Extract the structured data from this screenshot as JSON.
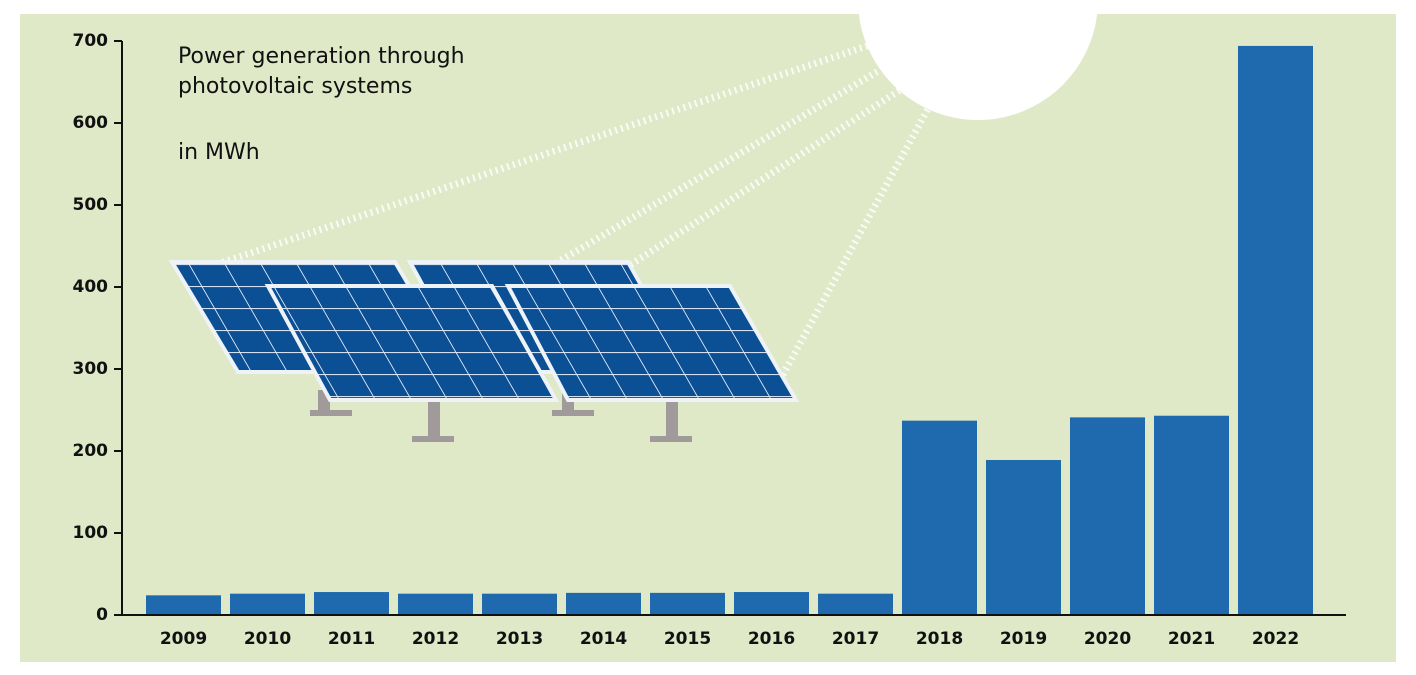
{
  "chart_data": {
    "type": "bar",
    "title": "Power generation through photovoltaic systems",
    "subtitle": "in MWh",
    "categories": [
      "2009",
      "2010",
      "2011",
      "2012",
      "2013",
      "2014",
      "2015",
      "2016",
      "2017",
      "2018",
      "2019",
      "2020",
      "2021",
      "2022"
    ],
    "values": [
      24,
      26,
      28,
      26,
      26,
      27,
      27,
      28,
      26,
      237,
      189,
      241,
      243,
      694
    ],
    "color": "#1f6aae",
    "ylim": [
      0,
      700
    ],
    "yticks": [
      0,
      100,
      200,
      300,
      400,
      500,
      600,
      700
    ],
    "grid": false
  }
}
